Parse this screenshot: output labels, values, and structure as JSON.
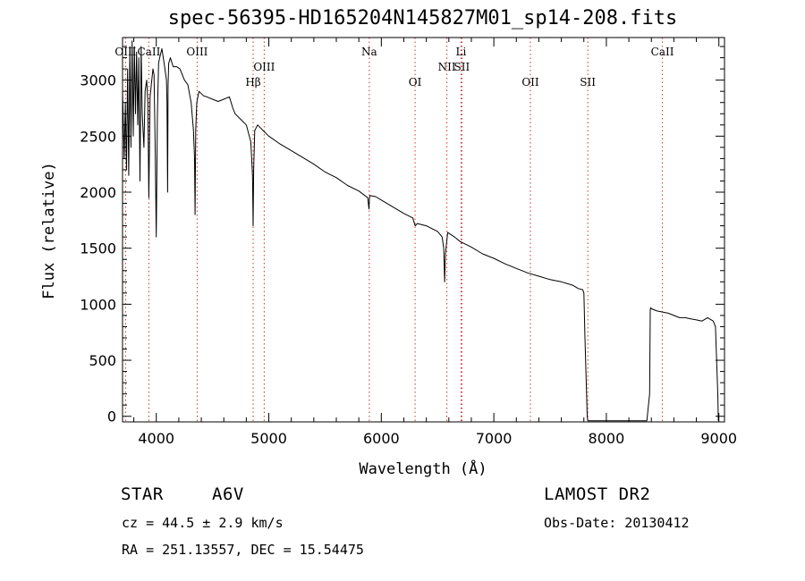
{
  "title": "spec-56395-HD165204N145827M01_sp14-208.fits",
  "info": {
    "object_class": "STAR",
    "subclass": "A6V",
    "survey": "LAMOST DR2",
    "redshift": "cz = 44.5 ± 2.9 km/s",
    "obs_date": "Obs-Date: 20130412",
    "coords": "RA = 251.13557, DEC =  15.54475"
  },
  "colors": {
    "line": "#000000",
    "marker": "#cc3333",
    "axis": "#000000"
  },
  "chart_data": {
    "type": "line",
    "title": "spec-56395-HD165204N145827M01_sp14-208.fits",
    "xlabel": "Wavelength (Å)",
    "ylabel": "Flux (relative)",
    "xlim": [
      3700,
      9050
    ],
    "ylim": [
      -50,
      3380
    ],
    "xticks": [
      4000,
      5000,
      6000,
      7000,
      8000,
      9000
    ],
    "yticks": [
      0,
      500,
      1000,
      1500,
      2000,
      2500,
      3000
    ],
    "lines": [
      {
        "label": "OIII",
        "x": 3727,
        "row": 1
      },
      {
        "label": "CaII",
        "x": 3934,
        "row": 1
      },
      {
        "label": "OIII",
        "x": 4363,
        "row": 1
      },
      {
        "label": "Hβ",
        "x": 4861,
        "row": 3
      },
      {
        "label": "OIII",
        "x": 4959,
        "row": 2
      },
      {
        "label": "Na",
        "x": 5893,
        "row": 1
      },
      {
        "label": "OI",
        "x": 6300,
        "row": 3
      },
      {
        "label": "NII",
        "x": 6583,
        "row": 2
      },
      {
        "label": "Li",
        "x": 6708,
        "row": 1
      },
      {
        "label": "SII",
        "x": 6716,
        "row": 2
      },
      {
        "label": "OII",
        "x": 7325,
        "row": 3
      },
      {
        "label": "SII",
        "x": 7835,
        "row": 3
      },
      {
        "label": "CaII",
        "x": 8498,
        "row": 1
      }
    ],
    "series": [
      {
        "x": [
          3700,
          3715,
          3725,
          3735,
          3745,
          3755,
          3765,
          3775,
          3785,
          3795,
          3805,
          3815,
          3825,
          3835,
          3845,
          3855,
          3865,
          3875,
          3890,
          3900,
          3915,
          3925,
          3934,
          3945,
          3960,
          3970,
          3980,
          3990,
          4000,
          4010,
          4020,
          4030,
          4050,
          4070,
          4090,
          4095,
          4101,
          4105,
          4110,
          4125,
          4150,
          4180,
          4210,
          4250,
          4280,
          4310,
          4330,
          4340,
          4345,
          4350,
          4360,
          4380,
          4420,
          4450,
          4500,
          4550,
          4600,
          4650,
          4680,
          4700,
          4750,
          4800,
          4840,
          4855,
          4861,
          4865,
          4875,
          4900,
          4950,
          5000,
          5100,
          5200,
          5300,
          5400,
          5500,
          5600,
          5700,
          5800,
          5880,
          5890,
          5895,
          5900,
          5950,
          6000,
          6100,
          6200,
          6280,
          6300,
          6320,
          6400,
          6500,
          6540,
          6555,
          6563,
          6570,
          6590,
          6650,
          6700,
          6800,
          6900,
          7000,
          7100,
          7200,
          7300,
          7400,
          7500,
          7600,
          7700,
          7750,
          7790,
          7800,
          7810,
          7830,
          7835,
          8000,
          8200,
          8360,
          8385,
          8390,
          8395,
          8400,
          8450,
          8500,
          8550,
          8600,
          8650,
          8700,
          8750,
          8800,
          8850,
          8900,
          8950,
          8970,
          8990,
          8995
        ],
        "y": [
          2900,
          2300,
          2800,
          2200,
          3100,
          2150,
          3300,
          2400,
          3350,
          2500,
          3300,
          2700,
          3250,
          2600,
          3200,
          2100,
          3300,
          2700,
          2400,
          2900,
          3000,
          2800,
          1950,
          2850,
          3000,
          3100,
          3050,
          2400,
          1600,
          2700,
          3150,
          3200,
          3280,
          3150,
          3000,
          2800,
          2000,
          2950,
          3150,
          3200,
          3120,
          3120,
          3100,
          3000,
          2960,
          2800,
          2550,
          2300,
          1800,
          2550,
          2800,
          2900,
          2860,
          2850,
          2830,
          2810,
          2830,
          2850,
          2750,
          2700,
          2650,
          2600,
          2450,
          2150,
          1700,
          2200,
          2550,
          2600,
          2550,
          2500,
          2430,
          2370,
          2310,
          2250,
          2180,
          2130,
          2060,
          2010,
          1950,
          1850,
          1950,
          1970,
          1960,
          1930,
          1870,
          1810,
          1770,
          1700,
          1720,
          1700,
          1650,
          1600,
          1500,
          1200,
          1450,
          1640,
          1600,
          1560,
          1510,
          1450,
          1410,
          1360,
          1320,
          1280,
          1250,
          1220,
          1200,
          1170,
          1140,
          1130,
          1100,
          700,
          0,
          -40,
          -40,
          -40,
          -40,
          200,
          950,
          970,
          960,
          940,
          930,
          920,
          900,
          880,
          880,
          870,
          860,
          850,
          880,
          850,
          800,
          200,
          -40
        ]
      }
    ]
  }
}
